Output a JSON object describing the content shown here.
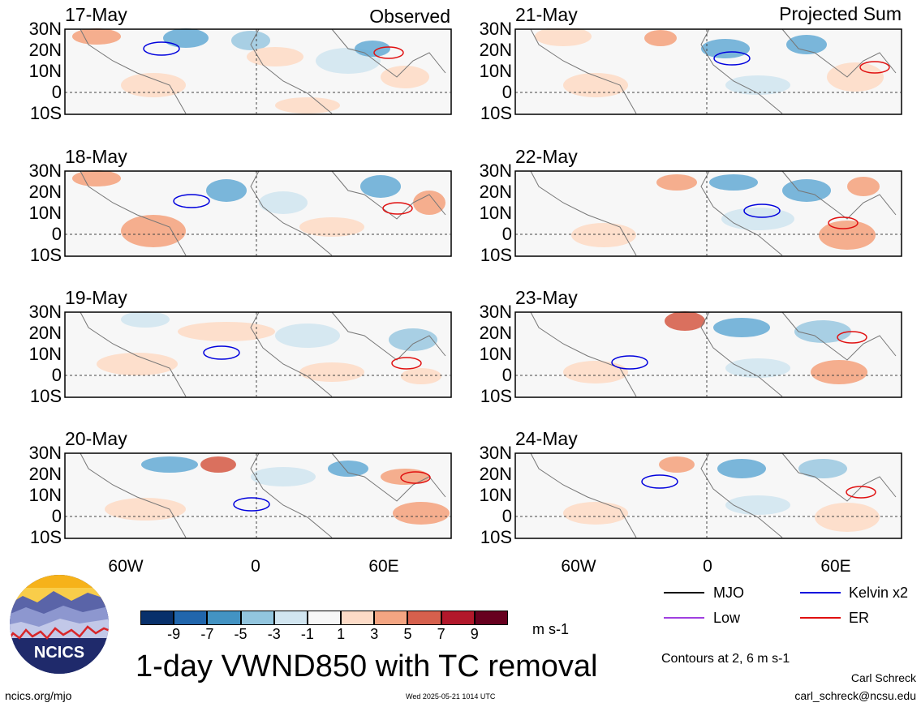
{
  "columns": {
    "left_heading": "Observed",
    "right_heading": "Projected Sum"
  },
  "panels": [
    {
      "date": "17-May"
    },
    {
      "date": "18-May"
    },
    {
      "date": "19-May"
    },
    {
      "date": "20-May"
    },
    {
      "date": "21-May"
    },
    {
      "date": "22-May"
    },
    {
      "date": "23-May"
    },
    {
      "date": "24-May"
    }
  ],
  "lat_labels": [
    "30N",
    "20N",
    "10N",
    "0",
    "10S"
  ],
  "lon_labels": [
    "60W",
    "0",
    "60E"
  ],
  "legend": {
    "items": [
      {
        "label": "MJO",
        "color": "#000000"
      },
      {
        "label": "Kelvin x2",
        "color": "#0000dd"
      },
      {
        "label": "Low",
        "color": "#a040e0"
      },
      {
        "label": "ER",
        "color": "#e01010"
      }
    ],
    "contour_note": "Contours at 2, 6 m s-1"
  },
  "colorbar": {
    "colors": [
      "#08306b",
      "#2166ac",
      "#4393c3",
      "#92c5de",
      "#d1e5f0",
      "#f7f7f7",
      "#fddbc7",
      "#f4a582",
      "#d6604d",
      "#b2182b",
      "#67001f"
    ],
    "ticks": [
      "-9",
      "-7",
      "-5",
      "-3",
      "-1",
      "1",
      "3",
      "5",
      "7",
      "9"
    ],
    "unit": "m s-1"
  },
  "title": "1-day VWND850 with TC removal",
  "logo_text": "NCICS",
  "footer": {
    "url": "ncics.org/mjo",
    "timestamp": "Wed 2025-05-21 1014 UTC",
    "author": "Carl Schreck",
    "email": "carl_schreck@ncsu.edu"
  }
}
